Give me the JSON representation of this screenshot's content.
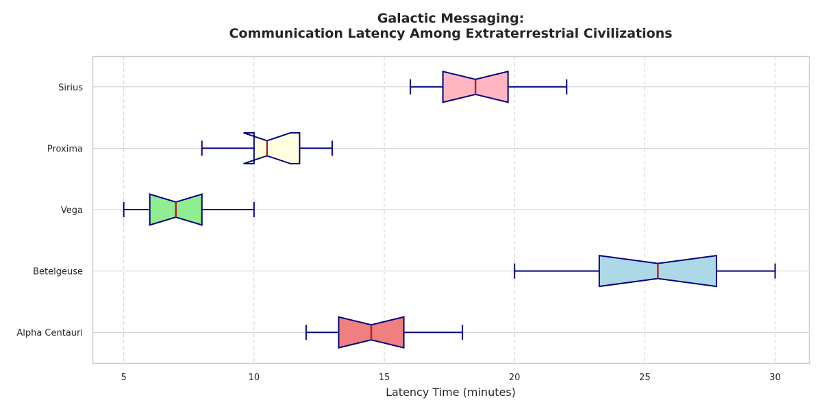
{
  "chart_data": {
    "type": "box",
    "orientation": "horizontal",
    "notched": true,
    "title_lines": [
      "Galactic Messaging:",
      "Communication Latency Among Extraterrestrial Civilizations"
    ],
    "xlabel": "Latency Time (minutes)",
    "ylabel": "",
    "xlim": [
      3.8,
      31.3
    ],
    "xticks": [
      5,
      10,
      15,
      20,
      25,
      30
    ],
    "grid": {
      "x": "dashed",
      "y": "solid"
    },
    "colors": {
      "edge": "#000080",
      "median": "#b22222",
      "whisker": "#000080",
      "grid": "#cccccc"
    },
    "categories": [
      "Sirius",
      "Proxima",
      "Vega",
      "Betelgeuse",
      "Alpha Centauri"
    ],
    "boxes": [
      {
        "name": "Sirius",
        "whislo": 16,
        "q1": 17.25,
        "med": 18.5,
        "q3": 19.75,
        "whishi": 22,
        "notch_lo": 17.25,
        "notch_hi": 19.75,
        "fill": "#ffb6c1"
      },
      {
        "name": "Proxima",
        "whislo": 8,
        "q1": 10,
        "med": 10.5,
        "q3": 11.75,
        "whishi": 13,
        "notch_lo": 9.6,
        "notch_hi": 11.4,
        "fill": "#ffffe0"
      },
      {
        "name": "Vega",
        "whislo": 5,
        "q1": 6,
        "med": 7,
        "q3": 8,
        "whishi": 10,
        "notch_lo": 6,
        "notch_hi": 8,
        "fill": "#90ee90"
      },
      {
        "name": "Betelgeuse",
        "whislo": 20,
        "q1": 23.25,
        "med": 25.5,
        "q3": 27.75,
        "whishi": 30,
        "notch_lo": 23.25,
        "notch_hi": 27.75,
        "fill": "#add8e6"
      },
      {
        "name": "Alpha Centauri",
        "whislo": 12,
        "q1": 13.25,
        "med": 14.5,
        "q3": 15.75,
        "whishi": 18,
        "notch_lo": 13.25,
        "notch_hi": 15.75,
        "fill": "#f08080"
      }
    ]
  }
}
